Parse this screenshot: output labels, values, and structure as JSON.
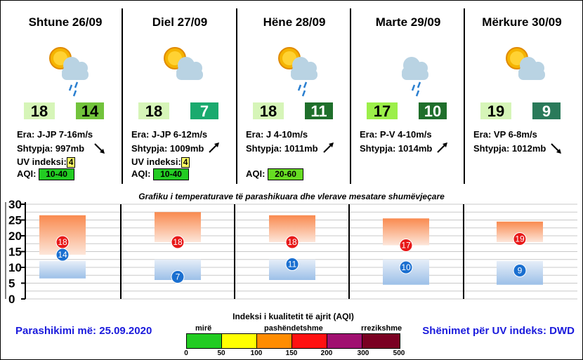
{
  "days": [
    {
      "title": "Shtune 26/09",
      "icon": "sun-cloud-rain-icon",
      "tmax": "18",
      "tmin": "14",
      "tmax_color": "#d6f5b8",
      "tmin_color": "#72c33c",
      "tmin_text": "#000000",
      "wind": "Era: J-JP 7-16m/s",
      "pressure": "Shtypja: 997mb",
      "uv_label": "UV indeksi:",
      "uv": "4",
      "aqi_label": "AQI:",
      "aqi": "10-40",
      "aqi_color": "#22cc22",
      "arrow": "arrow-down-right-icon"
    },
    {
      "title": "Diel 27/09",
      "icon": "sun-cloud-icon",
      "tmax": "18",
      "tmin": "7",
      "tmax_color": "#d6f5b8",
      "tmin_color": "#1aaa6e",
      "tmin_text": "#ffffff",
      "wind": "Era: J-JP 6-12m/s",
      "pressure": "Shtypja: 1009mb",
      "uv_label": "UV indeksi:",
      "uv": "4",
      "aqi_label": "AQI:",
      "aqi": "10-40",
      "aqi_color": "#22cc22",
      "arrow": "arrow-up-right-icon"
    },
    {
      "title": "Hëne 28/09",
      "icon": "sun-cloud-rain-icon",
      "tmax": "18",
      "tmin": "11",
      "tmax_color": "#d6f5b8",
      "tmin_color": "#1f6f2b",
      "tmin_text": "#ffffff",
      "wind": "Era: J 4-10m/s",
      "pressure": "Shtypja: 1011mb",
      "uv_label": "",
      "uv": "",
      "aqi_label": "AQI:",
      "aqi": "20-60",
      "aqi_color": "#66dd22",
      "arrow": "arrow-up-right-icon"
    },
    {
      "title": "Marte 29/09",
      "icon": "cloud-rain-icon",
      "tmax": "17",
      "tmin": "10",
      "tmax_color": "#9cef4a",
      "tmin_color": "#1f6f2b",
      "tmin_text": "#ffffff",
      "wind": "Era: P-V 4-10m/s",
      "pressure": "Shtypja: 1014mb",
      "uv_label": "",
      "uv": "",
      "aqi_label": "",
      "aqi": "",
      "aqi_color": "",
      "arrow": "arrow-up-right-icon"
    },
    {
      "title": "Mërkure 30/09",
      "icon": "sun-cloud-icon",
      "tmax": "19",
      "tmin": "9",
      "tmax_color": "#d6f5b8",
      "tmin_color": "#2a7a5a",
      "tmin_text": "#ffffff",
      "wind": "Era: VP 6-8m/s",
      "pressure": "Shtypja: 1012mb",
      "uv_label": "",
      "uv": "",
      "aqi_label": "",
      "aqi": "",
      "aqi_color": "",
      "arrow": "arrow-down-right-icon"
    }
  ],
  "chart_title": "Grafiku i temperaturave të parashikuara dhe vlerave mesatare shumëvjeçare",
  "chart_data": {
    "type": "bar",
    "categories": [
      "Shtune 26/09",
      "Diel 27/09",
      "Hëne 28/09",
      "Marte 29/09",
      "Mërkure 30/09"
    ],
    "ylim": [
      0,
      30
    ],
    "yticks": [
      "0",
      "5",
      "10",
      "15",
      "20",
      "25",
      "30"
    ],
    "grid": true,
    "max_band": [
      [
        14,
        26.5
      ],
      [
        18,
        27.5
      ],
      [
        18,
        26.5
      ],
      [
        17,
        25.5
      ],
      [
        18,
        24.5
      ]
    ],
    "min_band": [
      [
        6.5,
        12
      ],
      [
        6,
        12.5
      ],
      [
        6,
        12.5
      ],
      [
        4.5,
        12.5
      ],
      [
        4.5,
        12
      ]
    ],
    "tmax": [
      "18",
      "18",
      "18",
      "17",
      "19"
    ],
    "tmin": [
      "14",
      "7",
      "11",
      "10",
      "9"
    ]
  },
  "footer_left": "Parashikimi më: 25.09.2020",
  "footer_right": "Shënimet për UV indeks: DWD",
  "aqi_legend": {
    "title": "Indeksi i kualitetit të ajrit (AQI)",
    "labels": [
      "mirë",
      "pashëndetshme",
      "rrezikshme"
    ],
    "colors": [
      "#22cc22",
      "#ffff00",
      "#ff8c00",
      "#ff1111",
      "#a01070",
      "#7a0022"
    ],
    "ticks": [
      "0",
      "50",
      "100",
      "150",
      "200",
      "300",
      "500"
    ]
  }
}
